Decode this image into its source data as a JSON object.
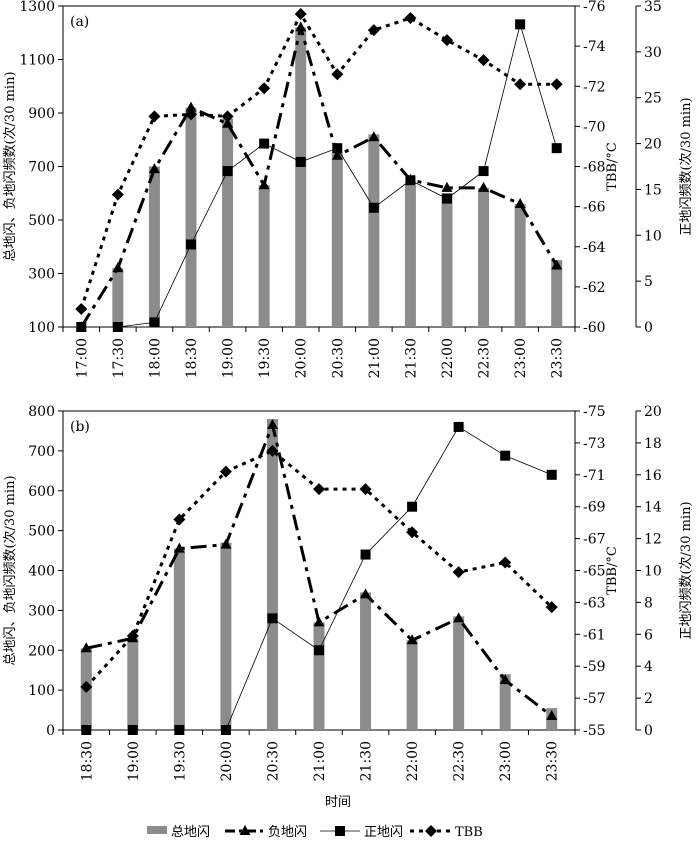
{
  "legend": [
    "总地闪",
    "负地闪",
    "正地闪",
    "TBB"
  ],
  "xlabel_shared": "时间",
  "chart_data": [
    {
      "type": "bar+line",
      "panel_label": "(a)",
      "categories": [
        "17:00",
        "17:30",
        "18:00",
        "18:30",
        "19:00",
        "19:30",
        "20:00",
        "20:30",
        "21:00",
        "21:30",
        "22:00",
        "22:30",
        "23:00",
        "23:30"
      ],
      "ylabel_left": "总地闪、负地闪频数(次/30 min)",
      "ylabel_right_tbb": "TBB/°C",
      "ylabel_right_pos": "正地闪频数(次/30 min)",
      "ylim_left": [
        100,
        1300
      ],
      "yticks_left": [
        100,
        300,
        500,
        700,
        900,
        1100,
        1300
      ],
      "ylim_tbb": [
        -60,
        -76
      ],
      "yticks_tbb": [
        -60,
        -62,
        -64,
        -66,
        -68,
        -70,
        -72,
        -74,
        -76
      ],
      "ylim_pos": [
        0,
        35
      ],
      "yticks_pos": [
        0,
        5,
        10,
        15,
        20,
        25,
        30,
        35
      ],
      "series": [
        {
          "name": "总地闪",
          "kind": "bar",
          "axis": "left",
          "values": [
            100,
            320,
            700,
            920,
            880,
            630,
            1220,
            750,
            820,
            630,
            600,
            620,
            560,
            350
          ]
        },
        {
          "name": "负地闪",
          "kind": "dash",
          "axis": "left",
          "values": [
            100,
            320,
            690,
            920,
            860,
            630,
            1220,
            740,
            810,
            650,
            620,
            620,
            560,
            330
          ]
        },
        {
          "name": "正地闪",
          "kind": "thin",
          "axis": "pos",
          "values": [
            0,
            0,
            0.5,
            9,
            17,
            20,
            18,
            19.5,
            13,
            16,
            14,
            17,
            33,
            19.5
          ]
        },
        {
          "name": "TBB",
          "kind": "dot",
          "axis": "tbb",
          "values": [
            -60.9,
            -66.6,
            -70.5,
            -70.6,
            -70.5,
            -71.9,
            -75.6,
            -72.6,
            -74.8,
            -75.4,
            -74.3,
            -73.3,
            -72.1,
            -72.1
          ]
        }
      ]
    },
    {
      "type": "bar+line",
      "panel_label": "(b)",
      "categories": [
        "18:30",
        "19:00",
        "19:30",
        "20:00",
        "20:30",
        "21:00",
        "21:30",
        "22:00",
        "22:30",
        "23:00",
        "23:30"
      ],
      "ylabel_left": "总地闪、负地闪频数(次/30 min)",
      "ylabel_right_tbb": "TBB/°C",
      "ylabel_right_pos": "正地闪频数(次/30 min)",
      "xlabel": "时间",
      "ylim_left": [
        0,
        800
      ],
      "yticks_left": [
        0,
        100,
        200,
        300,
        400,
        500,
        600,
        700,
        800
      ],
      "ylim_tbb": [
        -55,
        -75
      ],
      "yticks_tbb": [
        -55,
        -57,
        -59,
        -61,
        -63,
        -65,
        -67,
        -69,
        -71,
        -73,
        -75
      ],
      "ylim_pos": [
        0,
        20
      ],
      "yticks_pos": [
        0,
        2,
        4,
        6,
        8,
        10,
        12,
        14,
        16,
        18,
        20
      ],
      "series": [
        {
          "name": "总地闪",
          "kind": "bar",
          "axis": "left",
          "values": [
            205,
            230,
            455,
            470,
            780,
            270,
            345,
            225,
            285,
            140,
            55
          ]
        },
        {
          "name": "负地闪",
          "kind": "dash",
          "axis": "left",
          "values": [
            205,
            230,
            455,
            465,
            765,
            270,
            340,
            225,
            280,
            125,
            35
          ]
        },
        {
          "name": "正地闪",
          "kind": "thin",
          "axis": "pos",
          "values": [
            0,
            0,
            0,
            0,
            7,
            5,
            11,
            14,
            19,
            17.2,
            16
          ]
        },
        {
          "name": "TBB",
          "kind": "dot",
          "axis": "tbb",
          "values": [
            -57.7,
            -60.9,
            -68.2,
            -71.2,
            -72.5,
            -70.1,
            -70.1,
            -67.4,
            -64.9,
            -65.5,
            -62.7
          ]
        }
      ]
    }
  ]
}
